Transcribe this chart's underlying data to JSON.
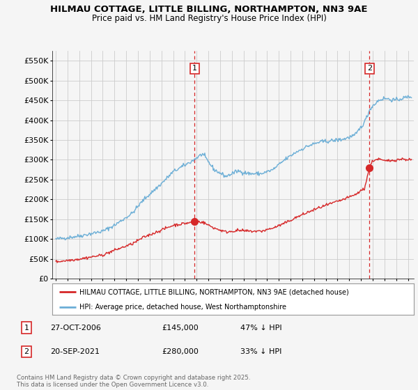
{
  "title": "HILMAU COTTAGE, LITTLE BILLING, NORTHAMPTON, NN3 9AE",
  "subtitle": "Price paid vs. HM Land Registry's House Price Index (HPI)",
  "legend_line1": "HILMAU COTTAGE, LITTLE BILLING, NORTHAMPTON, NN3 9AE (detached house)",
  "legend_line2": "HPI: Average price, detached house, West Northamptonshire",
  "annotation1_label": "1",
  "annotation1_date": "27-OCT-2006",
  "annotation1_price": "£145,000",
  "annotation1_hpi": "47% ↓ HPI",
  "annotation2_label": "2",
  "annotation2_date": "20-SEP-2021",
  "annotation2_price": "£280,000",
  "annotation2_hpi": "33% ↓ HPI",
  "footnote": "Contains HM Land Registry data © Crown copyright and database right 2025.\nThis data is licensed under the Open Government Licence v3.0.",
  "hpi_color": "#6baed6",
  "price_color": "#d62728",
  "vline_color": "#d62728",
  "background_color": "#f5f5f5",
  "grid_color": "#cccccc",
  "ylim": [
    0,
    575000
  ],
  "yticks": [
    0,
    50000,
    100000,
    150000,
    200000,
    250000,
    300000,
    350000,
    400000,
    450000,
    500000,
    550000
  ],
  "xlim_start": 1994.7,
  "xlim_end": 2025.5,
  "vline1_x": 2006.82,
  "vline2_x": 2021.72,
  "marker1_x": 2006.82,
  "marker1_y": 145000,
  "marker2_x": 2021.72,
  "marker2_y": 280000,
  "num1_x": 2006.82,
  "num1_y": 530000,
  "num2_x": 2021.72,
  "num2_y": 530000
}
